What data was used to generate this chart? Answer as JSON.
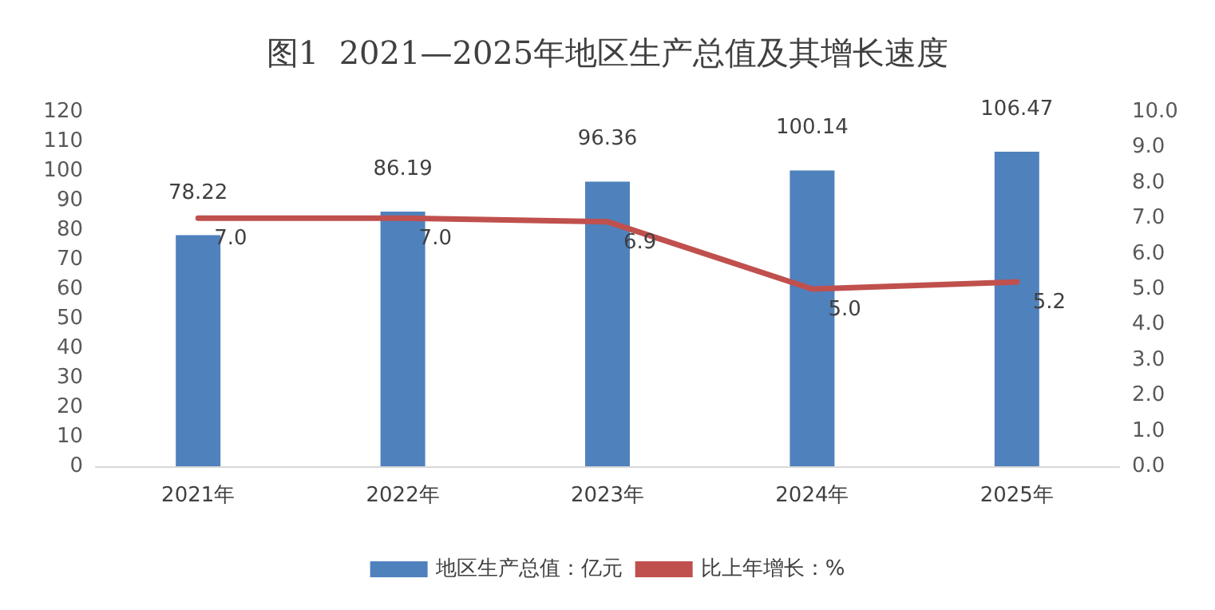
{
  "chart_data": {
    "type": "bar",
    "title": "图1  2021—2025年地区生产总值及其增长速度",
    "categories": [
      "2021年",
      "2022年",
      "2023年",
      "2024年",
      "2025年"
    ],
    "series": [
      {
        "name": "地区生产总值：亿元",
        "color": "#4f81bd",
        "values": [
          78.22,
          86.19,
          96.36,
          100.14,
          106.47
        ],
        "value_labels": [
          "78.22",
          "86.19",
          "96.36",
          "100.14",
          "106.47"
        ]
      },
      {
        "name": "比上年增长：%",
        "type": "line",
        "axis": "y2",
        "color": "#c0504d",
        "values": [
          7.0,
          7.0,
          6.9,
          5.0,
          5.2
        ],
        "value_labels": [
          "7.0",
          "7.0",
          "6.9",
          "5.0",
          "5.2"
        ]
      }
    ],
    "ylim": [
      0,
      120
    ],
    "yticks": [
      0,
      10,
      20,
      30,
      40,
      50,
      60,
      70,
      80,
      90,
      100,
      110,
      120
    ],
    "y2lim": [
      0,
      10
    ],
    "y2ticks": [
      {
        "value": 0,
        "label": "0.0"
      },
      {
        "value": 1,
        "label": "1.0"
      },
      {
        "value": 2,
        "label": "2.0"
      },
      {
        "value": 3,
        "label": "3.0"
      },
      {
        "value": 4,
        "label": "4.0"
      },
      {
        "value": 5,
        "label": "5.0"
      },
      {
        "value": 6,
        "label": "6.0"
      },
      {
        "value": 7,
        "label": "7.0"
      },
      {
        "value": 8,
        "label": "8.0"
      },
      {
        "value": 9,
        "label": "9.0"
      },
      {
        "value": 10,
        "label": "10.0"
      }
    ],
    "grid": false,
    "legend": "bottom",
    "marker": "none",
    "line_style": "solid"
  }
}
